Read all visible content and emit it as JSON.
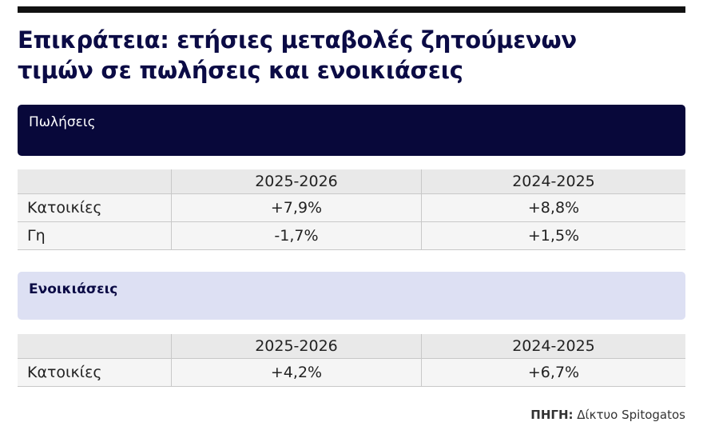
{
  "header": {
    "title_lines": [
      "Επικράτεια: ετήσιες μεταβολές ζητούμενων",
      "τιμών σε πωλήσεις και ενοικιάσεις"
    ]
  },
  "sections": [
    {
      "title": "Πωλήσεις",
      "columns": [
        "2025-2026",
        "2024-2025"
      ],
      "rows": [
        {
          "label": "Κατοικίες",
          "values": [
            "+7,9%",
            "+8,8%"
          ]
        },
        {
          "label": "Γη",
          "values": [
            "-1,7%",
            "+1,5%"
          ]
        }
      ]
    },
    {
      "title": "Ενοικιάσεις",
      "columns": [
        "2025-2026",
        "2024-2025"
      ],
      "rows": [
        {
          "label": "Κατοικίες",
          "values": [
            "+4,2%",
            "+6,7%"
          ]
        }
      ]
    }
  ],
  "source": {
    "label": "ΠΗΓΗ:",
    "text": "Δίκτυο Spitogatos"
  }
}
